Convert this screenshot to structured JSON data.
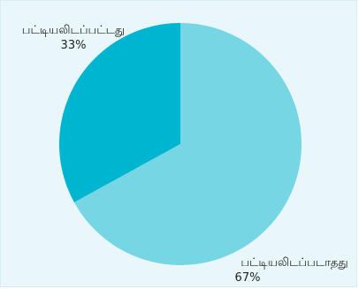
{
  "chart_data": {
    "type": "pie",
    "title": "",
    "slices": [
      {
        "label": "பட்டியலிடப்பட்டது",
        "value": 33,
        "value_label": "33%",
        "color": "#00b5cf"
      },
      {
        "label": "பட்டியலிடப்படாதது",
        "value": 67,
        "value_label": "67%",
        "color": "#76d6e4"
      }
    ],
    "legend": "none",
    "data_labels": "outside",
    "start_angle": "12 o'clock",
    "direction": "counterclockwise",
    "colors": {
      "background": "#e9f7fb",
      "border": "#d6eef3"
    }
  }
}
